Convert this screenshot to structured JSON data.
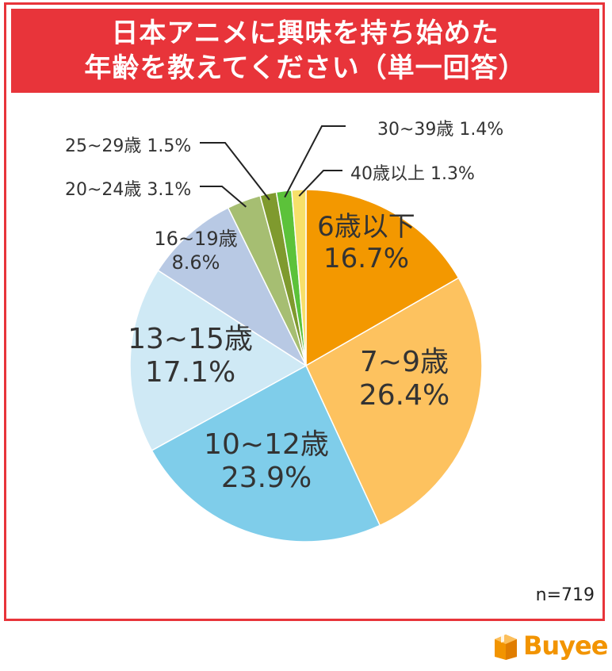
{
  "title": {
    "line1": "日本アニメに興味を持ち始めた",
    "line2": "年齢を教えてください（単一回答）"
  },
  "sample_size": "n=719",
  "brand": {
    "name": "Buyee",
    "icon": "buyee-box-icon",
    "color": "#f29400"
  },
  "colors": {
    "accent": "#e8343a"
  },
  "chart_data": {
    "type": "pie",
    "title": "日本アニメに興味を持ち始めた年齢を教えてください（単一回答）",
    "slices": [
      {
        "label": "6歳以下",
        "value": 16.7,
        "value_text": "16.7%",
        "color": "#f39800"
      },
      {
        "label": "7~9歳",
        "value": 26.4,
        "value_text": "26.4%",
        "color": "#fdc25f"
      },
      {
        "label": "10~12歳",
        "value": 23.9,
        "value_text": "23.9%",
        "color": "#7fcdea"
      },
      {
        "label": "13~15歳",
        "value": 17.1,
        "value_text": "17.1%",
        "color": "#cfe9f5"
      },
      {
        "label": "16~19歳",
        "value": 8.6,
        "value_text": "8.6%",
        "color": "#b8c9e4"
      },
      {
        "label": "20~24歳",
        "value": 3.1,
        "value_text": "3.1%",
        "color": "#a6be72"
      },
      {
        "label": "25~29歳",
        "value": 1.5,
        "value_text": "1.5%",
        "color": "#7f9a2e"
      },
      {
        "label": "30~39歳",
        "value": 1.4,
        "value_text": "1.4%",
        "color": "#5cc23a"
      },
      {
        "label": "40歳以上",
        "value": 1.3,
        "value_text": "1.3%",
        "color": "#f7e06a"
      }
    ]
  }
}
